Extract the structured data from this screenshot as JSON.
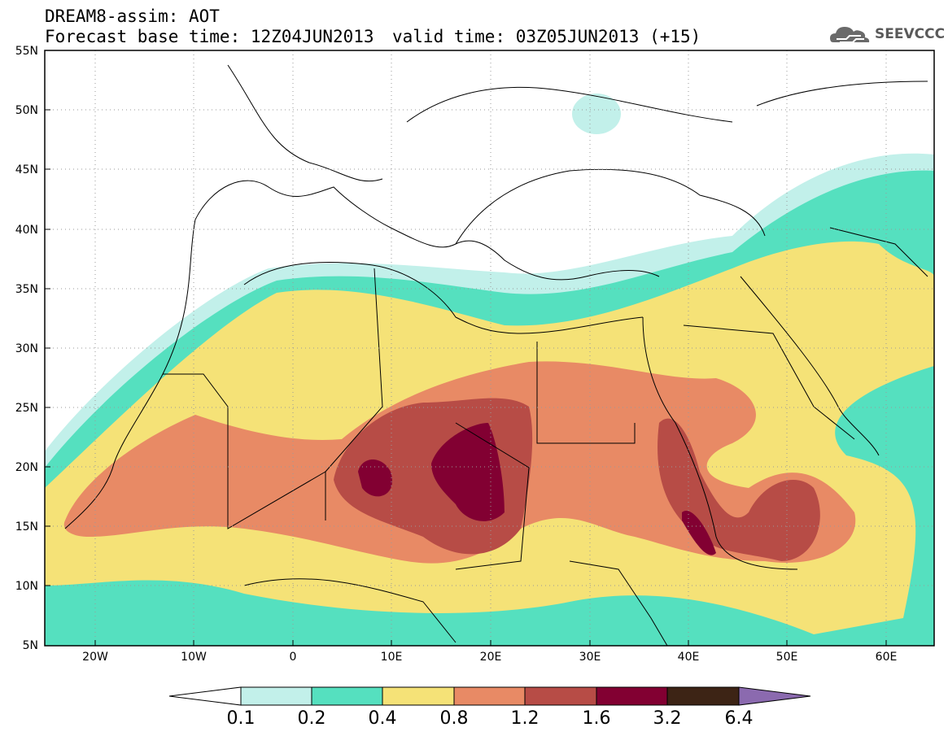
{
  "header": {
    "line1": "DREAM8-assim: AOT",
    "line2": "Forecast base time: 12Z04JUN2013",
    "valid": "valid time: 03Z05JUN2013 (+15)"
  },
  "logo": {
    "text": "SEEVCCC",
    "icon": "cloud-logo-icon"
  },
  "axes": {
    "lat_labels": [
      "55N",
      "50N",
      "45N",
      "40N",
      "35N",
      "30N",
      "25N",
      "20N",
      "15N",
      "10N",
      "5N"
    ],
    "lon_labels": [
      "20W",
      "10W",
      "0",
      "10E",
      "20E",
      "30E",
      "40E",
      "50E",
      "60E"
    ]
  },
  "colorbar": {
    "labels": [
      "0.1",
      "0.2",
      "0.4",
      "0.8",
      "1.2",
      "1.6",
      "3.2",
      "6.4"
    ],
    "colors": [
      "#ffffff",
      "#c2f0ea",
      "#55e0bf",
      "#f5e277",
      "#e88a65",
      "#b74c46",
      "#820032",
      "#3d2415",
      "#8b6aaf"
    ]
  },
  "field": {
    "variable": "AOT"
  }
}
